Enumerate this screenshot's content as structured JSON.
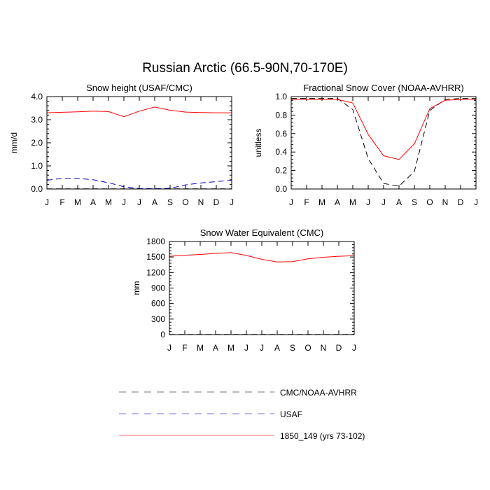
{
  "title": "Russian Arctic (66.5-90N,70-170E)",
  "chart_data": [
    {
      "type": "line",
      "title": "Snow height (USAF/CMC)",
      "ylabel": "mm/d",
      "ylim": [
        0,
        4.0
      ],
      "yticks": [
        "0.0",
        "1.0",
        "2.0",
        "3.0",
        "4.0"
      ],
      "categories": [
        "J",
        "F",
        "M",
        "A",
        "M",
        "J",
        "J",
        "A",
        "S",
        "O",
        "N",
        "D",
        "J"
      ],
      "series": [
        {
          "name": "1850_149 (yrs 73-102)",
          "color": "#ff0000",
          "dash": "solid",
          "values": [
            3.3,
            3.32,
            3.34,
            3.37,
            3.35,
            3.13,
            3.37,
            3.55,
            3.41,
            3.33,
            3.31,
            3.3,
            3.3
          ]
        },
        {
          "name": "USAF",
          "color": "#0000cc",
          "dash": "dashed",
          "values": [
            0.38,
            0.46,
            0.46,
            0.4,
            0.27,
            0.1,
            0.02,
            0.01,
            0.03,
            0.18,
            0.26,
            0.32,
            0.38
          ]
        },
        {
          "name": "CMC/NOAA-AVHRR",
          "color": "#000000",
          "dash": "dashed",
          "values": [
            0.01,
            0.01,
            0.01,
            0.01,
            0.01,
            0.01,
            0.01,
            0.01,
            0.01,
            0.01,
            0.01,
            0.01,
            0.01
          ]
        }
      ]
    },
    {
      "type": "line",
      "title": "Fractional Snow Cover (NOAA-AVHRR)",
      "ylabel": "unitless",
      "ylim": [
        0,
        1.0
      ],
      "yticks": [
        "0.0",
        "0.2",
        "0.4",
        "0.6",
        "0.8",
        "1.0"
      ],
      "categories": [
        "J",
        "F",
        "M",
        "A",
        "M",
        "J",
        "J",
        "A",
        "S",
        "O",
        "N",
        "D",
        "J"
      ],
      "series": [
        {
          "name": "1850_149 (yrs 73-102)",
          "color": "#ff0000",
          "dash": "solid",
          "values": [
            0.97,
            0.97,
            0.97,
            0.97,
            0.93,
            0.59,
            0.36,
            0.32,
            0.49,
            0.87,
            0.96,
            0.97,
            0.97
          ]
        },
        {
          "name": "CMC/NOAA-AVHRR",
          "color": "#000000",
          "dash": "dashed",
          "values": [
            0.98,
            0.98,
            0.98,
            0.98,
            0.86,
            0.33,
            0.06,
            0.03,
            0.19,
            0.85,
            0.97,
            0.98,
            0.98
          ]
        }
      ]
    },
    {
      "type": "line",
      "title": "Snow Water Equivalent (CMC)",
      "ylabel": "mm",
      "ylim": [
        0,
        1800
      ],
      "yticks": [
        "0",
        "300",
        "600",
        "900",
        "1200",
        "1500",
        "1800"
      ],
      "categories": [
        "J",
        "F",
        "M",
        "A",
        "M",
        "J",
        "J",
        "A",
        "S",
        "O",
        "N",
        "D",
        "J"
      ],
      "series": [
        {
          "name": "1850_149 (yrs 73-102)",
          "color": "#ff0000",
          "dash": "solid",
          "values": [
            1515,
            1535,
            1550,
            1570,
            1585,
            1530,
            1455,
            1405,
            1410,
            1465,
            1495,
            1515,
            1525
          ]
        },
        {
          "name": "CMC/NOAA-AVHRR",
          "color": "#000000",
          "dash": "dashed",
          "values": [
            3,
            3,
            3,
            3,
            3,
            3,
            3,
            3,
            3,
            3,
            3,
            3,
            3
          ]
        }
      ]
    }
  ],
  "legend": {
    "items": [
      {
        "label": "CMC/NOAA-AVHRR",
        "color": "#000000",
        "dash": "dashed"
      },
      {
        "label": "USAF",
        "color": "#0000cc",
        "dash": "dashed"
      },
      {
        "label": "1850_149 (yrs 73-102)",
        "color": "#ff0000",
        "dash": "solid"
      }
    ]
  }
}
